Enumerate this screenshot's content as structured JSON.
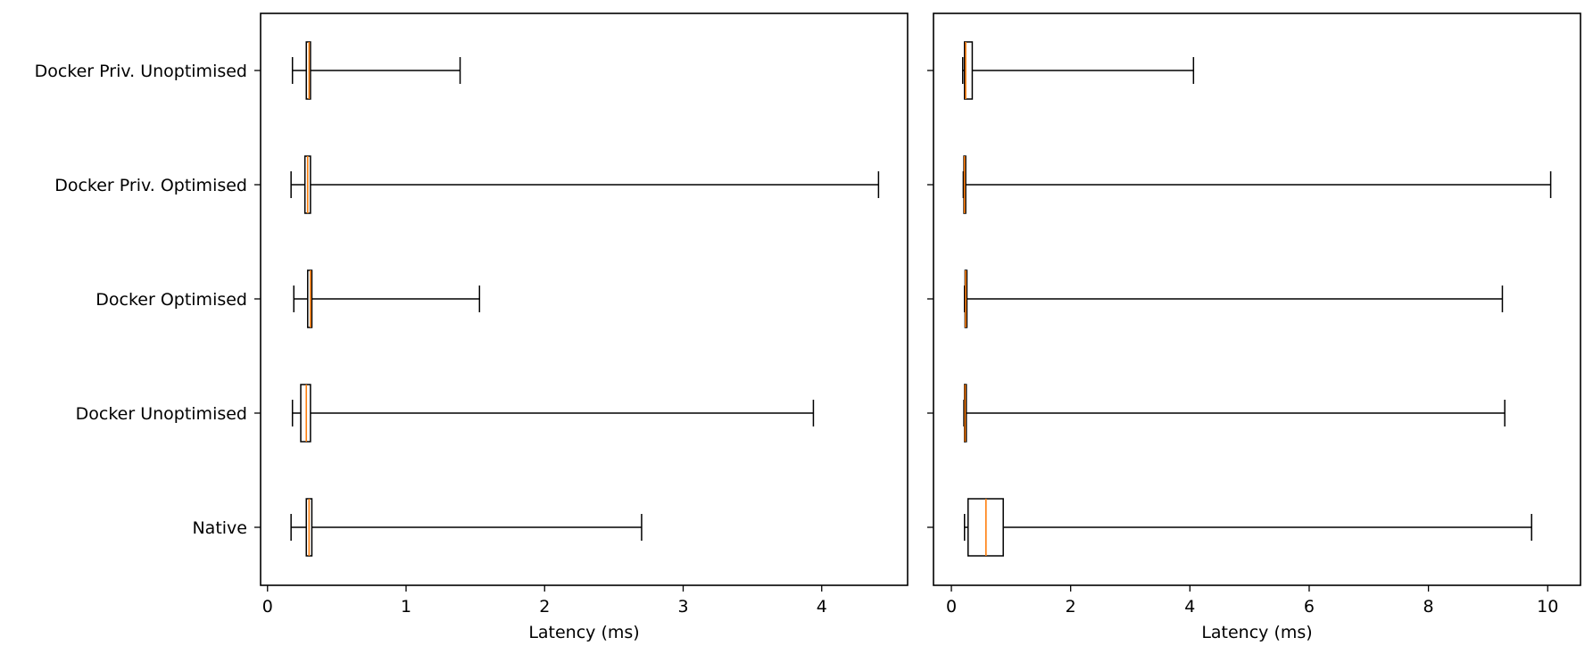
{
  "chart_data": {
    "type": "boxplot",
    "orientation": "horizontal",
    "categories": [
      "Native",
      "Docker Unoptimised",
      "Docker Optimised",
      "Docker Priv. Optimised",
      "Docker Priv. Unoptimised"
    ],
    "median_color": "#ff7f0e",
    "box_color": "#000000",
    "panels": [
      {
        "xlabel": "Latency (ms)",
        "xlim": [
          -0.05,
          4.62
        ],
        "xticks": [
          0,
          1,
          2,
          3,
          4
        ],
        "show_category_labels": true,
        "boxes": [
          {
            "category": "Native",
            "whisker_low": 0.17,
            "q1": 0.28,
            "median": 0.3,
            "q3": 0.32,
            "whisker_high": 2.7
          },
          {
            "category": "Docker Unoptimised",
            "whisker_low": 0.18,
            "q1": 0.24,
            "median": 0.28,
            "q3": 0.31,
            "whisker_high": 3.94
          },
          {
            "category": "Docker Optimised",
            "whisker_low": 0.19,
            "q1": 0.29,
            "median": 0.31,
            "q3": 0.32,
            "whisker_high": 1.53
          },
          {
            "category": "Docker Priv. Optimised",
            "whisker_low": 0.17,
            "q1": 0.27,
            "median": 0.29,
            "q3": 0.31,
            "whisker_high": 4.41
          },
          {
            "category": "Docker Priv. Unoptimised",
            "whisker_low": 0.18,
            "q1": 0.28,
            "median": 0.3,
            "q3": 0.31,
            "whisker_high": 1.39
          }
        ]
      },
      {
        "xlabel": "Latency (ms)",
        "xlim": [
          -0.3,
          10.55
        ],
        "xticks": [
          0,
          2,
          4,
          6,
          8,
          10
        ],
        "show_category_labels": false,
        "boxes": [
          {
            "category": "Native",
            "whisker_low": 0.22,
            "q1": 0.28,
            "median": 0.58,
            "q3": 0.87,
            "whisker_high": 9.73
          },
          {
            "category": "Docker Unoptimised",
            "whisker_low": 0.21,
            "q1": 0.22,
            "median": 0.23,
            "q3": 0.25,
            "whisker_high": 9.28
          },
          {
            "category": "Docker Optimised",
            "whisker_low": 0.22,
            "q1": 0.23,
            "median": 0.24,
            "q3": 0.26,
            "whisker_high": 9.24
          },
          {
            "category": "Docker Priv. Optimised",
            "whisker_low": 0.2,
            "q1": 0.21,
            "median": 0.22,
            "q3": 0.24,
            "whisker_high": 10.05
          },
          {
            "category": "Docker Priv. Unoptimised",
            "whisker_low": 0.19,
            "q1": 0.22,
            "median": 0.24,
            "q3": 0.35,
            "whisker_high": 4.06
          }
        ]
      }
    ]
  }
}
